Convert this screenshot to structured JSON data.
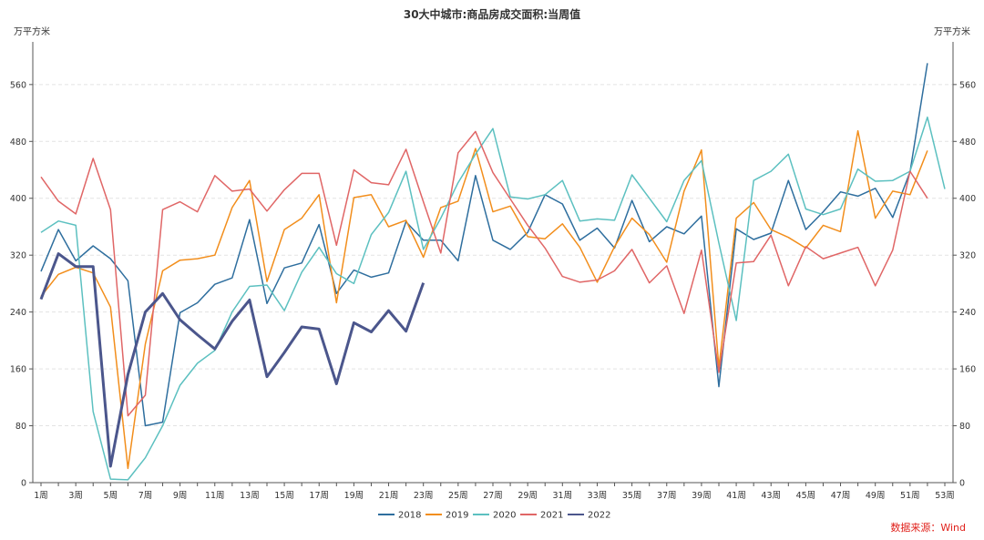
{
  "chart_data": {
    "type": "line",
    "title": "30大中城市:商品房成交面积:当周值",
    "ylabel_left": "万平方米",
    "ylabel_right": "万平方米",
    "ylim": [
      0,
      620
    ],
    "yticks": [
      0,
      80,
      160,
      240,
      320,
      400,
      480,
      560
    ],
    "x": [
      "1周",
      "2周",
      "3周",
      "4周",
      "5周",
      "6周",
      "7周",
      "8周",
      "9周",
      "10周",
      "11周",
      "12周",
      "13周",
      "14周",
      "15周",
      "16周",
      "17周",
      "18周",
      "19周",
      "20周",
      "21周",
      "22周",
      "23周",
      "24周",
      "25周",
      "26周",
      "27周",
      "28周",
      "29周",
      "30周",
      "31周",
      "32周",
      "33周",
      "34周",
      "35周",
      "36周",
      "37周",
      "38周",
      "39周",
      "40周",
      "41周",
      "42周",
      "43周",
      "44周",
      "45周",
      "46周",
      "47周",
      "48周",
      "49周",
      "50周",
      "51周",
      "52周",
      "53周"
    ],
    "xtick_labels": [
      "1周",
      "3周",
      "5周",
      "7周",
      "9周",
      "11周",
      "13周",
      "15周",
      "17周",
      "19周",
      "21周",
      "23周",
      "25周",
      "27周",
      "29周",
      "31周",
      "33周",
      "35周",
      "37周",
      "39周",
      "41周",
      "43周",
      "45周",
      "47周",
      "49周",
      "51周",
      "53周"
    ],
    "grid": true,
    "legend_position": "bottom",
    "series": [
      {
        "name": "2018",
        "color": "#2e6e9e",
        "width": 1.5,
        "values": [
          297,
          356,
          312,
          333,
          315,
          284,
          80,
          85,
          239,
          253,
          279,
          288,
          370,
          252,
          302,
          309,
          363,
          266,
          299,
          289,
          295,
          367,
          341,
          341,
          312,
          432,
          341,
          328,
          352,
          405,
          392,
          341,
          358,
          330,
          397,
          339,
          360,
          350,
          375,
          135,
          357,
          342,
          351,
          425,
          356,
          381,
          409,
          403,
          414,
          373,
          437,
          590,
          null
        ]
      },
      {
        "name": "2019",
        "color": "#f28e1c",
        "width": 1.5,
        "values": [
          262,
          293,
          303,
          295,
          247,
          20,
          195,
          298,
          313,
          315,
          320,
          387,
          425,
          283,
          356,
          372,
          405,
          253,
          401,
          405,
          360,
          369,
          317,
          387,
          396,
          470,
          381,
          389,
          346,
          343,
          364,
          331,
          282,
          332,
          372,
          349,
          310,
          410,
          468,
          162,
          372,
          394,
          356,
          345,
          330,
          362,
          353,
          495,
          372,
          410,
          405,
          467,
          null
        ]
      },
      {
        "name": "2020",
        "color": "#5cc0c0",
        "width": 1.5,
        "values": [
          352,
          368,
          362,
          100,
          5,
          4,
          35,
          80,
          137,
          168,
          186,
          240,
          276,
          278,
          242,
          296,
          331,
          294,
          280,
          349,
          380,
          438,
          328,
          372,
          422,
          462,
          498,
          402,
          399,
          405,
          425,
          368,
          371,
          369,
          433,
          400,
          367,
          425,
          453,
          337,
          228,
          425,
          438,
          462,
          385,
          377,
          385,
          441,
          424,
          425,
          438,
          514,
          413
        ]
      },
      {
        "name": "2021",
        "color": "#e06666",
        "width": 1.5,
        "values": [
          430,
          396,
          378,
          456,
          384,
          94,
          123,
          384,
          395,
          381,
          432,
          410,
          413,
          382,
          412,
          435,
          435,
          334,
          440,
          422,
          419,
          469,
          395,
          323,
          464,
          494,
          436,
          399,
          362,
          330,
          290,
          282,
          285,
          298,
          328,
          281,
          305,
          238,
          327,
          155,
          309,
          311,
          348,
          277,
          332,
          315,
          323,
          331,
          277,
          327,
          438,
          400,
          null
        ]
      },
      {
        "name": "2022",
        "color": "#4b568c",
        "width": 3,
        "values": [
          258,
          322,
          304,
          304,
          23,
          152,
          240,
          266,
          229,
          208,
          188,
          227,
          257,
          149,
          183,
          219,
          216,
          139,
          225,
          212,
          242,
          213,
          281,
          null,
          null,
          null,
          null,
          null,
          null,
          null,
          null,
          null,
          null,
          null,
          null,
          null,
          null,
          null,
          null,
          null,
          null,
          null,
          null,
          null,
          null,
          null,
          null,
          null,
          null,
          null,
          null,
          null,
          null
        ]
      }
    ]
  },
  "source_label": "数据来源：Wind"
}
